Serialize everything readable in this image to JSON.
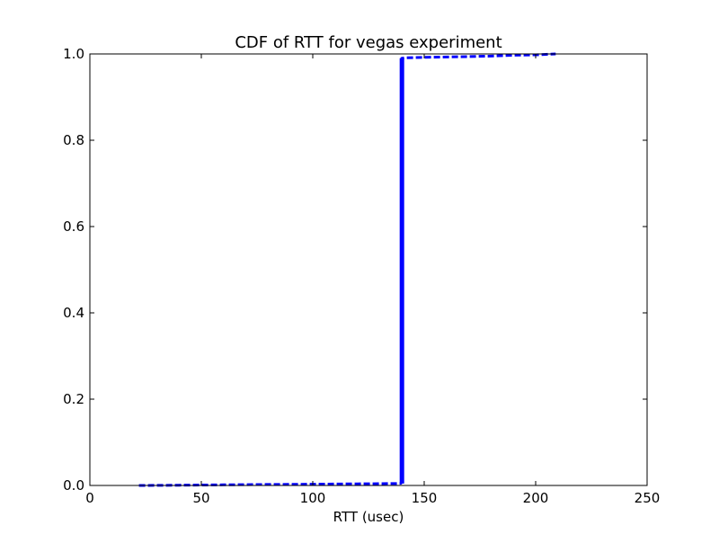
{
  "chart_data": {
    "type": "line",
    "title": "CDF of RTT for vegas experiment",
    "xlabel": "RTT (usec)",
    "ylabel": "",
    "xlim": [
      0,
      250
    ],
    "ylim": [
      0,
      1.0
    ],
    "xticks": [
      0,
      50,
      100,
      150,
      200,
      250
    ],
    "xtick_labels": [
      "0",
      "50",
      "100",
      "150",
      "200",
      "250"
    ],
    "yticks": [
      0,
      0.2,
      0.4,
      0.6,
      0.8,
      1.0
    ],
    "ytick_labels": [
      "0.0",
      "0.2",
      "0.4",
      "0.6",
      "0.8",
      "1.0"
    ],
    "grid": false,
    "legend": "none",
    "line_style": "dashed",
    "series": [
      {
        "color": "#0000ff",
        "x": [
          22,
          30,
          40,
          50,
          60,
          70,
          80,
          90,
          100,
          110,
          120,
          130,
          139,
          139.5,
          140,
          140,
          140,
          140,
          140,
          140,
          141,
          150,
          160,
          170,
          180,
          190,
          200,
          209
        ],
        "y": [
          0.0,
          0.0003,
          0.0006,
          0.001,
          0.0014,
          0.0018,
          0.0022,
          0.0026,
          0.003,
          0.0034,
          0.0038,
          0.0042,
          0.0045,
          0.005,
          0.01,
          0.2,
          0.4,
          0.6,
          0.8,
          0.99,
          0.991,
          0.992,
          0.993,
          0.994,
          0.995,
          0.997,
          0.998,
          1.0
        ]
      }
    ]
  }
}
